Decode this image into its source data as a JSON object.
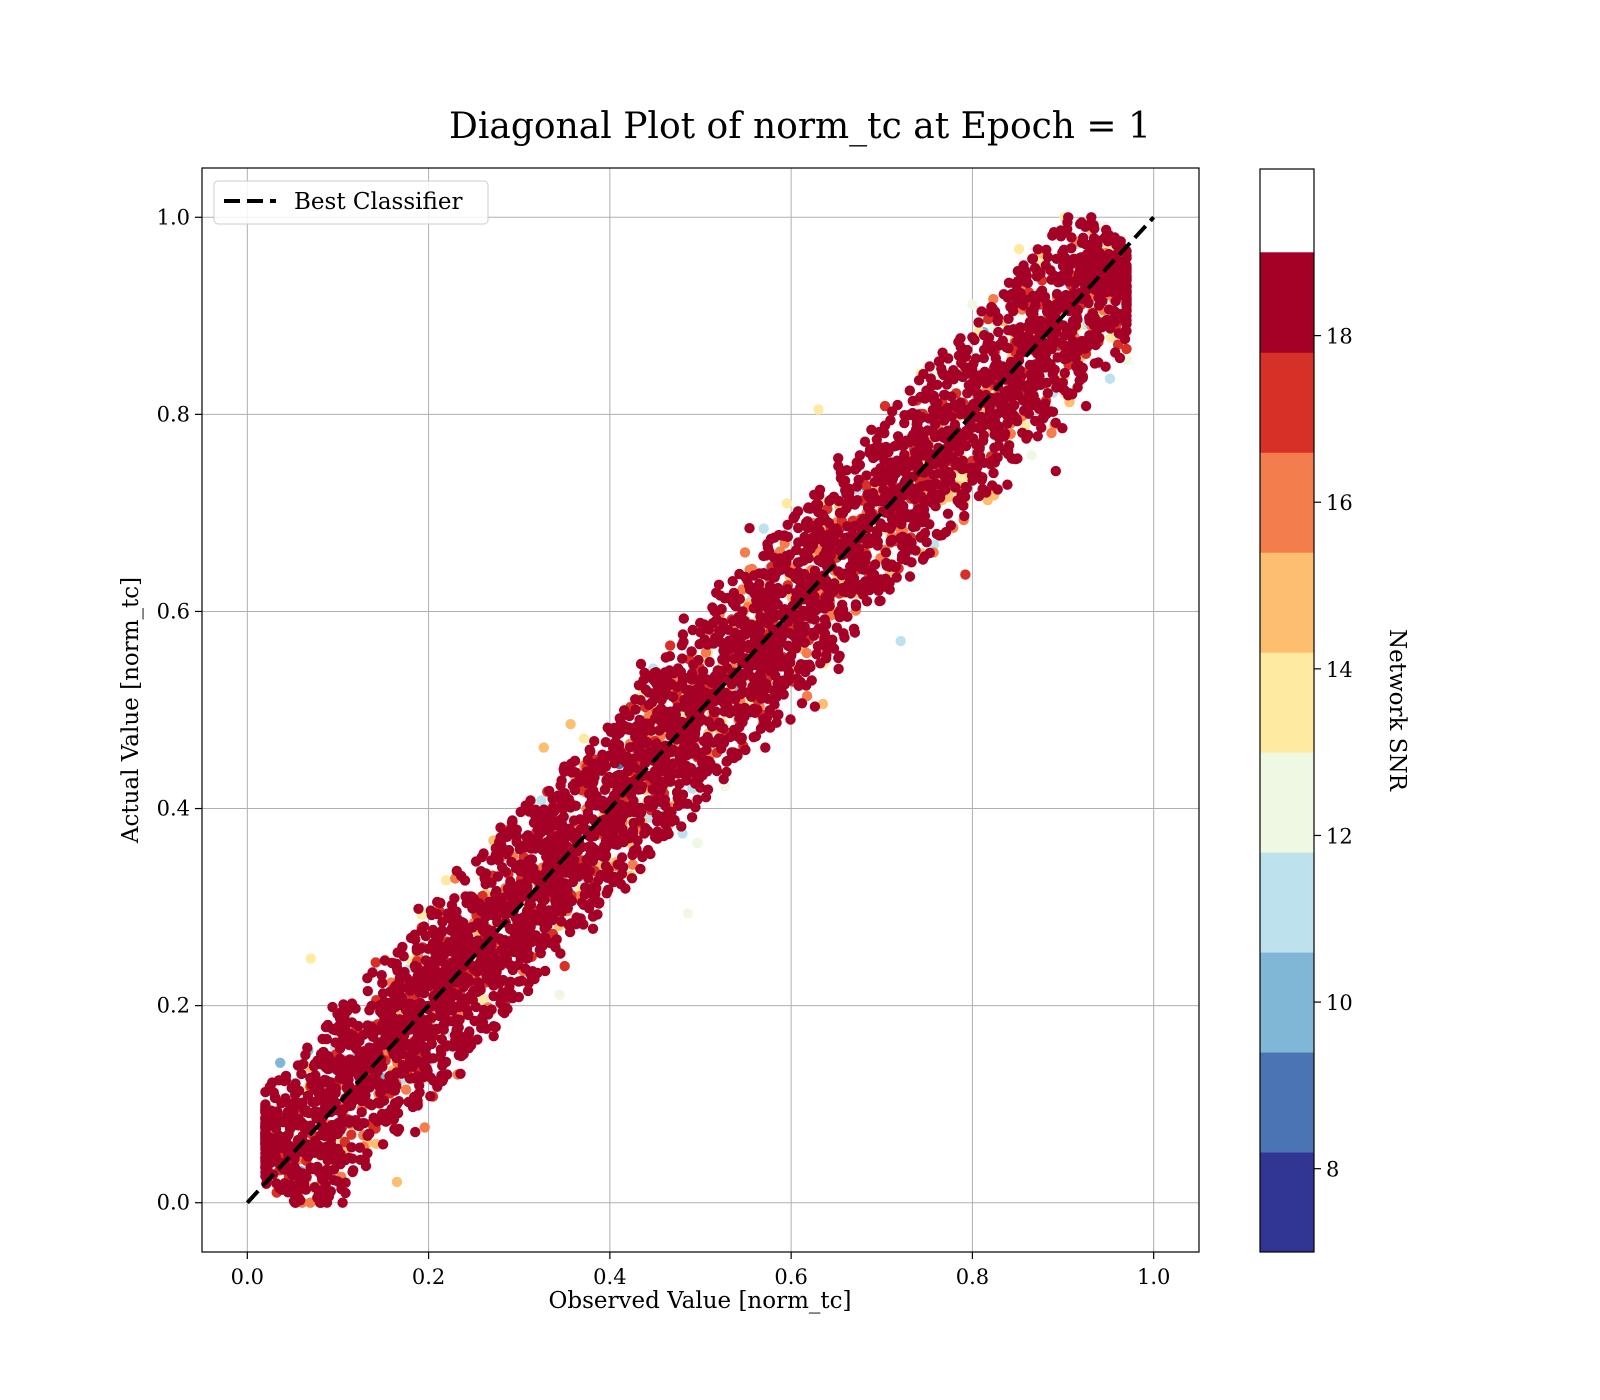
{
  "chart_data": {
    "type": "scatter",
    "title": "Diagonal Plot of norm_tc at Epoch = 1",
    "xlabel": "Observed Value [norm_tc]",
    "ylabel": "Actual Value [norm_tc]",
    "xlim": [
      -0.05,
      1.05
    ],
    "ylim": [
      -0.05,
      1.05
    ],
    "xticks": [
      "0.0",
      "0.2",
      "0.4",
      "0.6",
      "0.8",
      "1.0"
    ],
    "yticks": [
      "0.0",
      "0.2",
      "0.4",
      "0.6",
      "0.8",
      "1.0"
    ],
    "grid": true,
    "legend": {
      "placement": "top-left",
      "entries": [
        "Best Classifier"
      ]
    },
    "reference_line": {
      "name": "Best Classifier",
      "style": "dashed",
      "color": "#000000",
      "x": [
        0.0,
        1.0
      ],
      "y": [
        0.0,
        1.0
      ]
    },
    "colorbar": {
      "label": "Network SNR",
      "range": [
        7,
        20
      ],
      "ticks": [
        "8",
        "10",
        "12",
        "14",
        "16",
        "18"
      ],
      "levels": [
        7,
        8.2,
        9.4,
        10.6,
        11.8,
        13.0,
        14.2,
        15.4,
        16.6,
        17.8,
        19.0,
        20
      ],
      "colors": [
        "#313695",
        "#4a74b4",
        "#81b7d6",
        "#bde2ee",
        "#eff8e3",
        "#feeaa1",
        "#fdbe70",
        "#f47d4d",
        "#d63027",
        "#a50026"
      ]
    }
  }
}
